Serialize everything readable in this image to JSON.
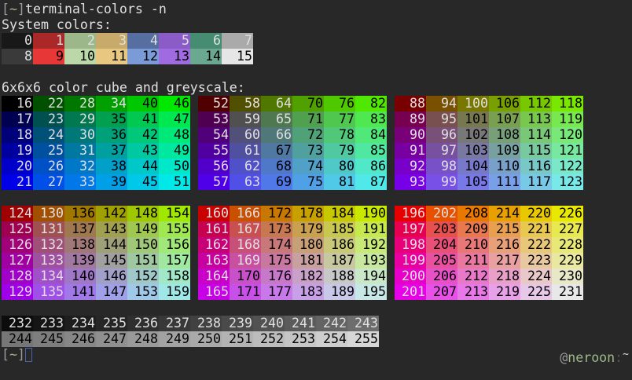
{
  "terminal": {
    "prompt_open": "[",
    "prompt_dir": "~",
    "prompt_close": "]",
    "command": "terminal-colors -n",
    "system_label": "System colors:",
    "cube_label": "6x6x6 color cube and greyscale:",
    "right_prompt_at": "@",
    "right_prompt_user": "neroon",
    "right_prompt_sep": ":",
    "right_prompt_dir": "~"
  },
  "colors": {
    "background": "#282828",
    "foreground": "#e0e0e0",
    "dark_text": "#000000",
    "prompt_green": "#9fb98a",
    "cursor": "#4a62b0"
  },
  "system_colors": [
    {
      "label": "0",
      "color": "#181818"
    },
    {
      "label": "1",
      "color": "#ab2828"
    },
    {
      "label": "2",
      "color": "#9cb78a"
    },
    {
      "label": "3",
      "color": "#c8aa6a"
    },
    {
      "label": "4",
      "color": "#566fa0"
    },
    {
      "label": "5",
      "color": "#8b5cc8"
    },
    {
      "label": "6",
      "color": "#458c72"
    },
    {
      "label": "7",
      "color": "#aaaaaa"
    },
    {
      "label": "8",
      "color": "#3a3a3a"
    },
    {
      "label": "9",
      "color": "#e83737"
    },
    {
      "label": "10",
      "color": "#bcd8a8"
    },
    {
      "label": "11",
      "color": "#e8c880"
    },
    {
      "label": "12",
      "color": "#7a9ad8"
    },
    {
      "label": "13",
      "color": "#a06ae0"
    },
    {
      "label": "14",
      "color": "#6aa890"
    },
    {
      "label": "15",
      "color": "#e6e6e6"
    }
  ],
  "cube": {
    "first_index": 16,
    "levels": [
      0,
      80,
      120,
      160,
      200,
      232
    ]
  },
  "greyscale": {
    "first_index": 232,
    "last_index": 255,
    "start_value": 12,
    "step": 8.8
  },
  "dark_text_ranges": [
    [
      9,
      15
    ],
    [
      35,
      51
    ],
    [
      67,
      87
    ],
    [
      101,
      123
    ],
    [
      136,
      159
    ],
    [
      170,
      195
    ],
    [
      203,
      231
    ],
    [
      244,
      255
    ]
  ]
}
